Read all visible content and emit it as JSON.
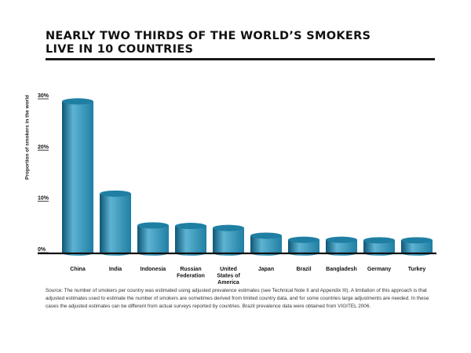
{
  "title_lines": [
    "NEARLY TWO THIRDS OF THE WORLD’S SMOKERS",
    "LIVE IN 10 COUNTRIES"
  ],
  "source": "Source: The number of smokers per country was estimated using adjusted prevalence estimates (see Technical Note II and Appendix III). A limitation of this approach is that adjusted estimates used to estimate the number of smokers are sometimes derived from limited country data, and for some countries large adjustments are needed. In these cases the adjusted estimates can be different from actual surveys reported by countries. Brazil prevalence data were obtained from VIGITEL 2006.",
  "colors": {
    "bar": "#1f7fa3",
    "bar_light": "#5eb3d3",
    "bar_dark": "#0d5575",
    "axis": "#111111",
    "rule": "#1a1a1a"
  },
  "chart_data": {
    "type": "bar",
    "title": "NEARLY TWO THIRDS OF THE WORLD’S SMOKERS LIVE IN 10 COUNTRIES",
    "ylabel": "Proportion of smokers in the world",
    "xlabel": "",
    "ylim": [
      0,
      30
    ],
    "yticks": [
      0,
      10,
      20,
      30
    ],
    "ytick_labels": [
      "0%",
      "10%",
      "20%",
      "30%"
    ],
    "grid": false,
    "categories": [
      "China",
      "India",
      "Indonesia",
      "Russian Federation",
      "United States of America",
      "Japan",
      "Brazil",
      "Bangladesh",
      "Germany",
      "Turkey"
    ],
    "category_lines": [
      [
        "China"
      ],
      [
        "India"
      ],
      [
        "Indonesia"
      ],
      [
        "Russian",
        "Federation"
      ],
      [
        "United",
        "States of",
        "America"
      ],
      [
        "Japan"
      ],
      [
        "Brazil"
      ],
      [
        "Bangladesh"
      ],
      [
        "Germany"
      ],
      [
        "Turkey"
      ]
    ],
    "values": [
      29.5,
      11.5,
      5.3,
      5.2,
      4.8,
      3.3,
      2.5,
      2.5,
      2.4,
      2.4
    ]
  }
}
